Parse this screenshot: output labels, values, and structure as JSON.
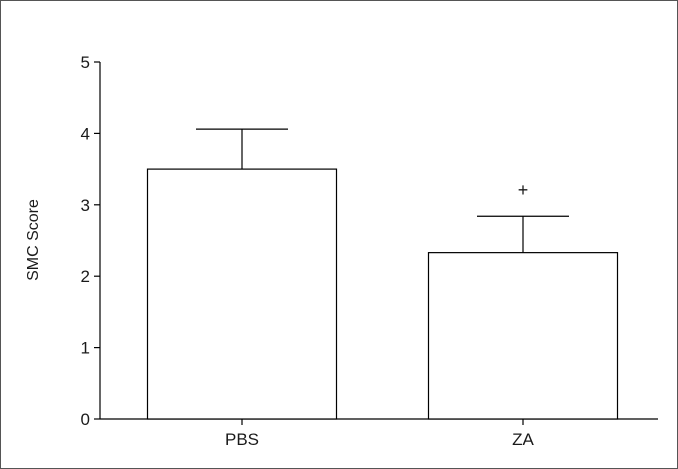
{
  "chart_data": {
    "type": "bar",
    "title": "",
    "xlabel": "",
    "ylabel": "SMC Score",
    "ylim": [
      0,
      5
    ],
    "yticks": [
      0,
      1,
      2,
      3,
      4,
      5
    ],
    "ytick_labels": [
      "0",
      "1",
      "2",
      "3",
      "4",
      "5"
    ],
    "categories": [
      "PBS",
      "ZA"
    ],
    "values": [
      3.5,
      2.33
    ],
    "error_upper": [
      0.56,
      0.51
    ],
    "annotations": [
      {
        "category": "ZA",
        "text": "+"
      }
    ],
    "grid": false,
    "bar_fill": "#ffffff",
    "bar_stroke": "#000000"
  }
}
